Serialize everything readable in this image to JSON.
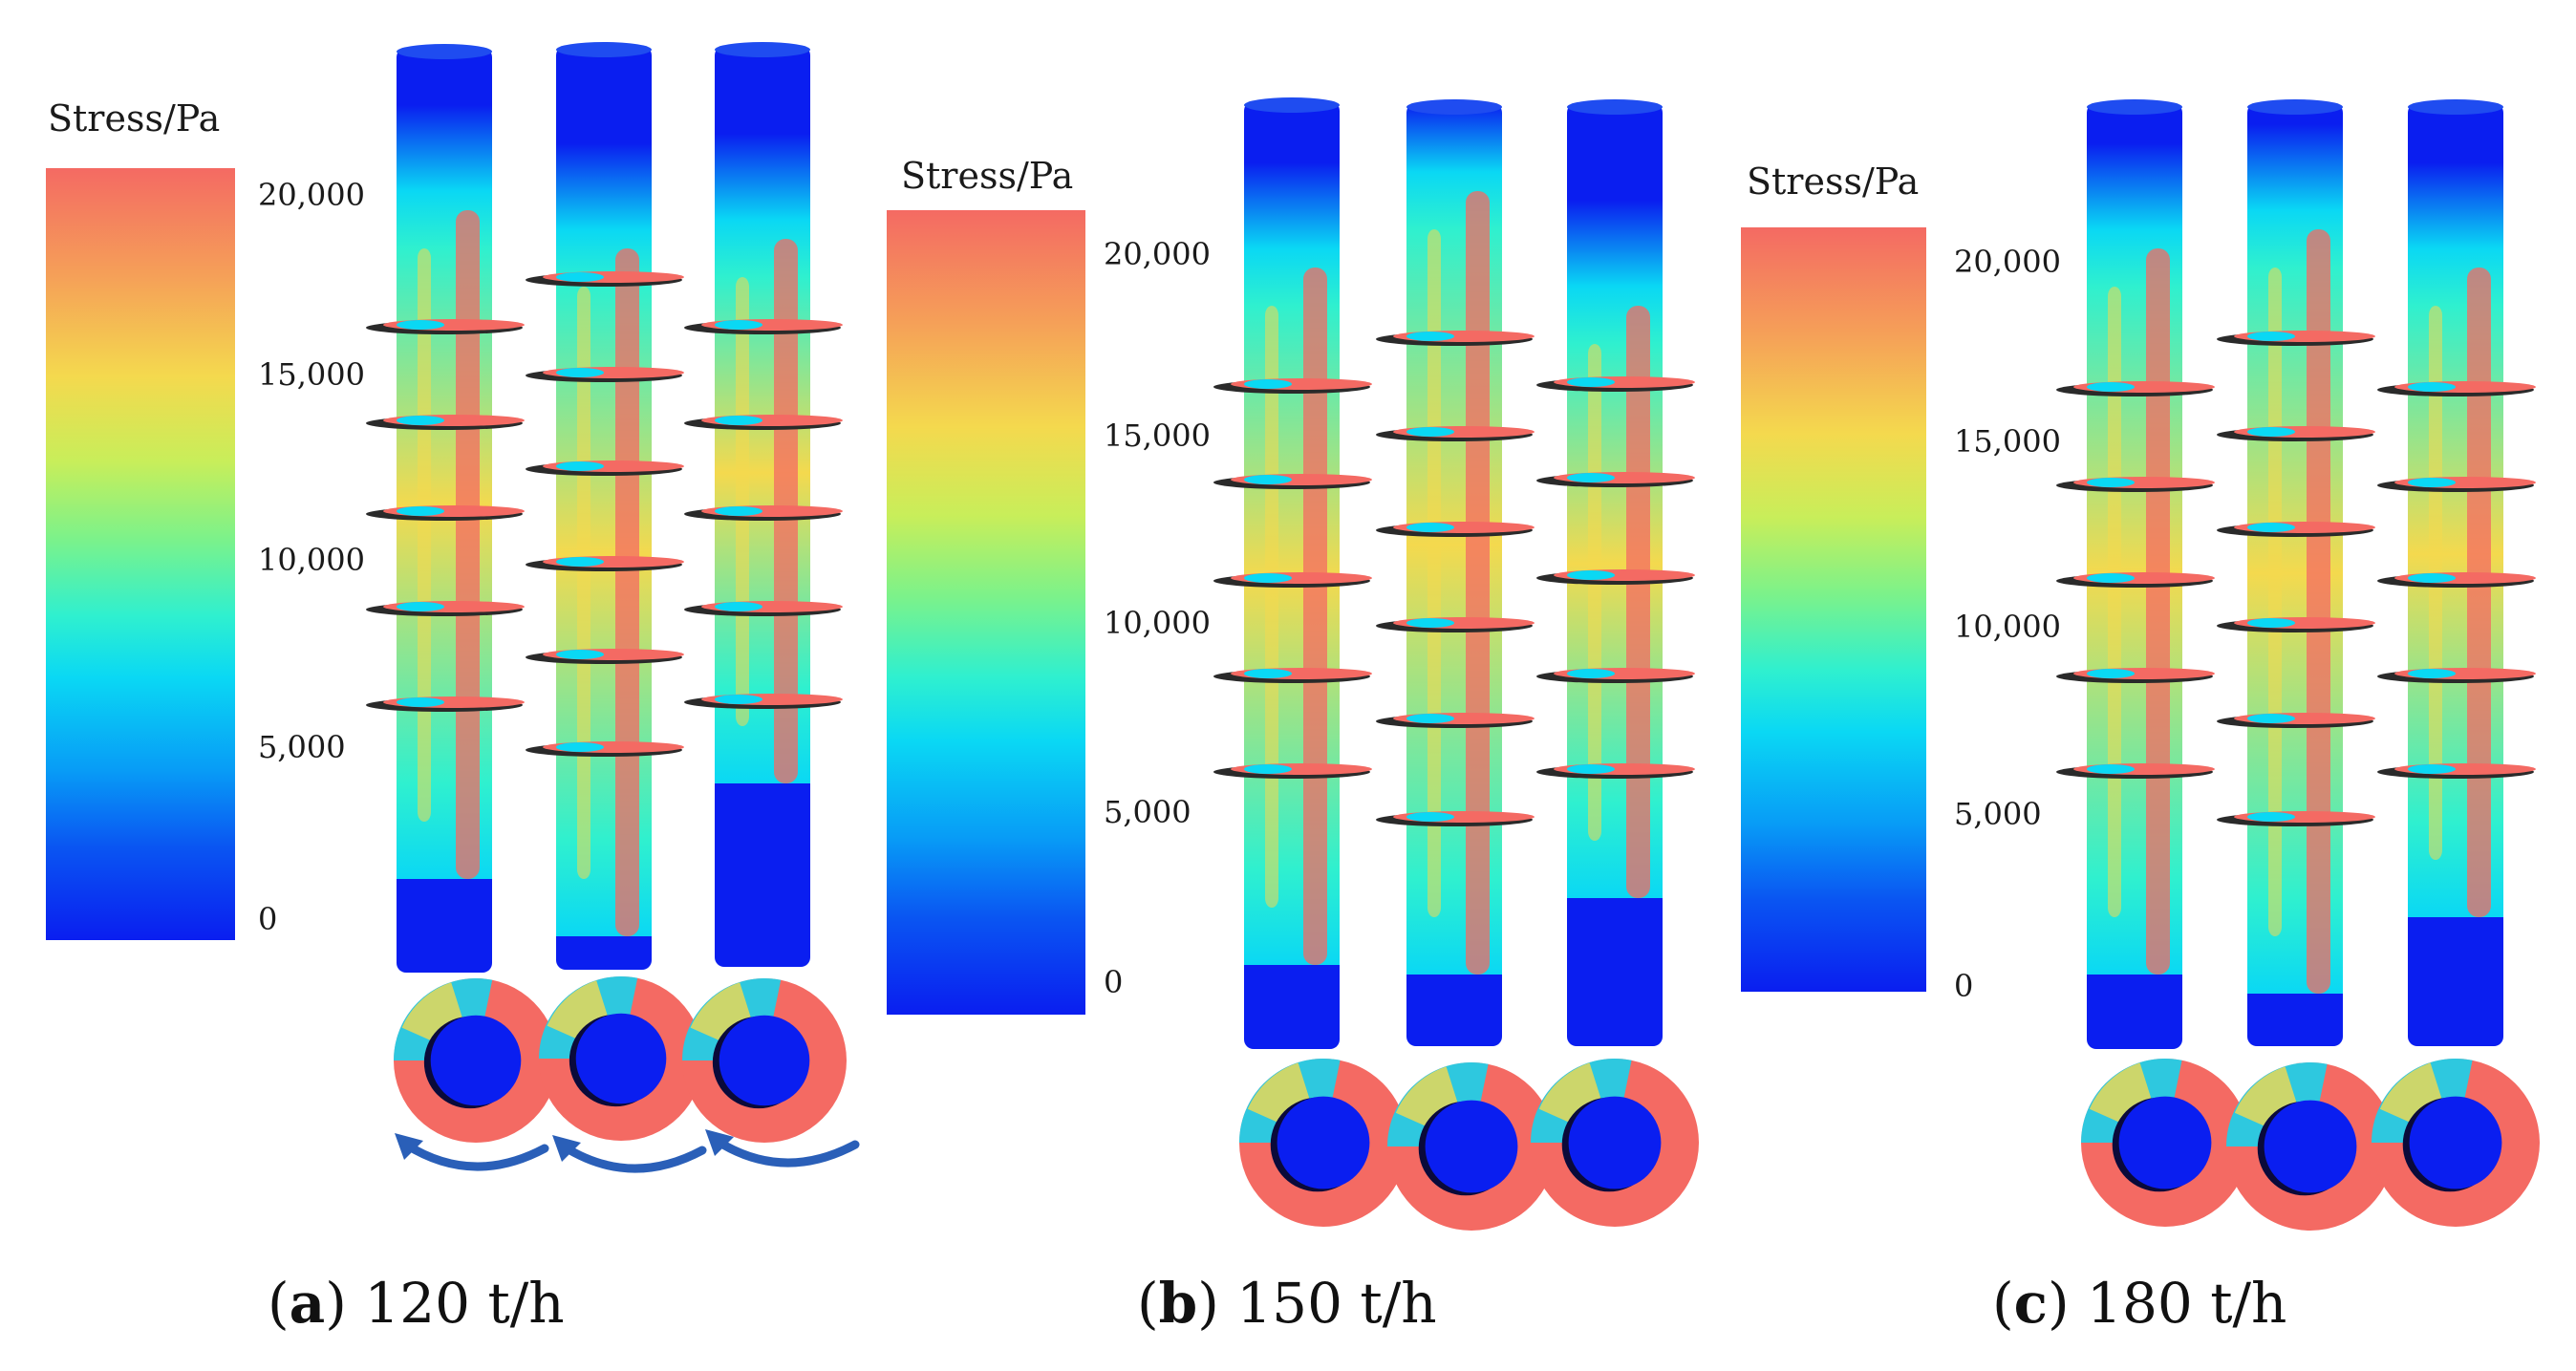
{
  "legend_title": "Stress/Pa",
  "legend_ticks": [
    "20,000",
    "15,000",
    "10,000",
    "5,000",
    "0"
  ],
  "panels": [
    {
      "letter": "a",
      "label": "120 t/h",
      "has_arrows": true
    },
    {
      "letter": "b",
      "label": "150 t/h",
      "has_arrows": false
    },
    {
      "letter": "c",
      "label": "180 t/h",
      "has_arrows": false
    }
  ],
  "colors": {
    "high": "#f46a63",
    "mid_high": "#f4d94e",
    "mid": "#2ff0cf",
    "mid_low": "#0ad8f4",
    "low": "#0a1ef0",
    "arrow": "#2a5fb8"
  }
}
